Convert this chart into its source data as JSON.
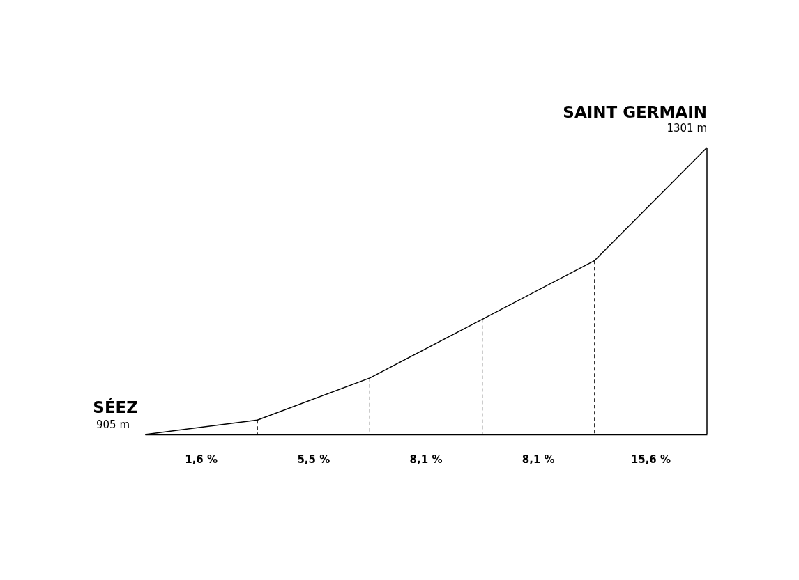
{
  "chart_data": {
    "type": "line",
    "categories": [
      null,
      null,
      null,
      null,
      null,
      null
    ],
    "series": [
      {
        "color": "#000000",
        "values": [
          905,
          925,
          983,
          1064,
          1145,
          1301
        ],
        "value_labels": [
          "905 m",
          null,
          null,
          null,
          null,
          "1301 m"
        ]
      }
    ],
    "annotations": [
      "SÉEZ",
      "SAINT GERMAIN",
      "1,6 %",
      "5,5 %",
      "8,1 %",
      "8,1 %",
      "15,6 %"
    ]
  }
}
